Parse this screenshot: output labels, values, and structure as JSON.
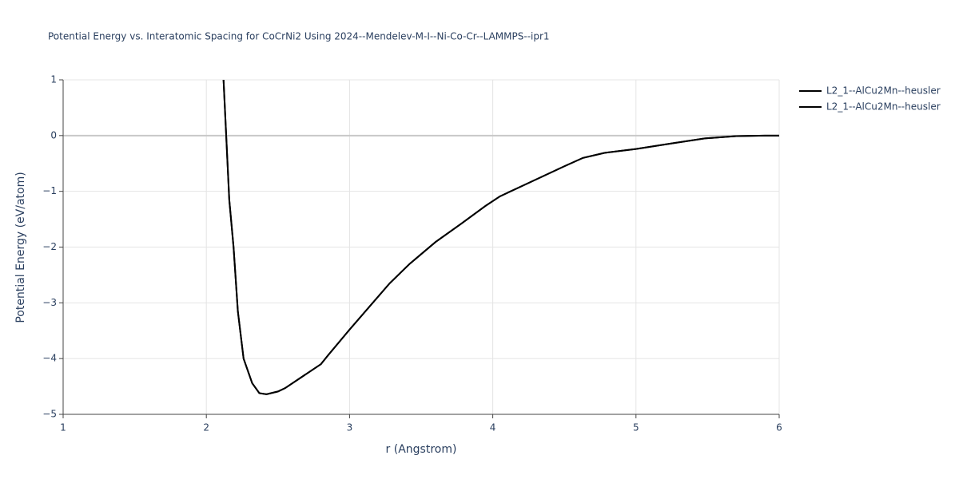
{
  "chart_data": {
    "type": "line",
    "title": "Potential Energy vs. Interatomic Spacing for CoCrNi2 Using 2024--Mendelev-M-I--Ni-Co-Cr--LAMMPS--ipr1",
    "x_label": "r (Angstrom)",
    "y_label": "Potential Energy (eV/atom)",
    "x": [
      2.12,
      2.16,
      2.19,
      2.22,
      2.26,
      2.32,
      2.37,
      2.42,
      2.5,
      2.55,
      2.8,
      2.85,
      3.0,
      3.28,
      3.42,
      3.6,
      3.78,
      3.95,
      4.05,
      4.2,
      4.5,
      4.63,
      4.78,
      5.0,
      5.25,
      5.48,
      5.7,
      5.9,
      6.0
    ],
    "series": [
      {
        "name": "L2_1--AlCu2Mn--heusler",
        "color": "#000000",
        "values": [
          1,
          -1.15,
          -2.0,
          -3.15,
          -4.0,
          -4.44,
          -4.62,
          -4.64,
          -4.59,
          -4.53,
          -4.1,
          -3.94,
          -3.48,
          -2.65,
          -2.3,
          -1.91,
          -1.58,
          -1.26,
          -1.09,
          -0.91,
          -0.55,
          -0.4,
          -0.31,
          -0.24,
          -0.14,
          -0.05,
          -0.01,
          0,
          0
        ]
      },
      {
        "name": "L2_1--AlCu2Mn--heusler",
        "color": "#000000",
        "values": [
          1,
          -1.15,
          -2.0,
          -3.15,
          -4.0,
          -4.44,
          -4.62,
          -4.64,
          -4.59,
          -4.53,
          -4.1,
          -3.94,
          -3.48,
          -2.65,
          -2.3,
          -1.91,
          -1.58,
          -1.26,
          -1.09,
          -0.91,
          -0.55,
          -0.4,
          -0.31,
          -0.24,
          -0.14,
          -0.05,
          -0.01,
          0,
          0
        ]
      }
    ],
    "xlim": [
      1,
      6
    ],
    "xticks": [
      1,
      2,
      3,
      4,
      5,
      6
    ],
    "ylim": [
      -5,
      1
    ],
    "yticks": [
      {
        "value": -5,
        "label": "−5"
      },
      {
        "value": -4,
        "label": "−4"
      },
      {
        "value": -3,
        "label": "−3"
      },
      {
        "value": -2,
        "label": "−2"
      },
      {
        "value": -1,
        "label": "−1"
      },
      0,
      1
    ],
    "grid": true
  }
}
